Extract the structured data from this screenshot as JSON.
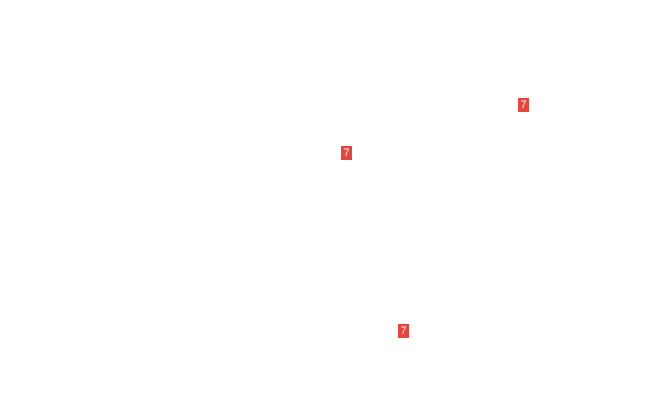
{
  "colors": {
    "badge_background": "#e8453c",
    "badge_text": "#ffffff",
    "background": "#ffffff"
  },
  "markers": [
    {
      "label": "7"
    },
    {
      "label": "7"
    },
    {
      "label": "7"
    }
  ]
}
